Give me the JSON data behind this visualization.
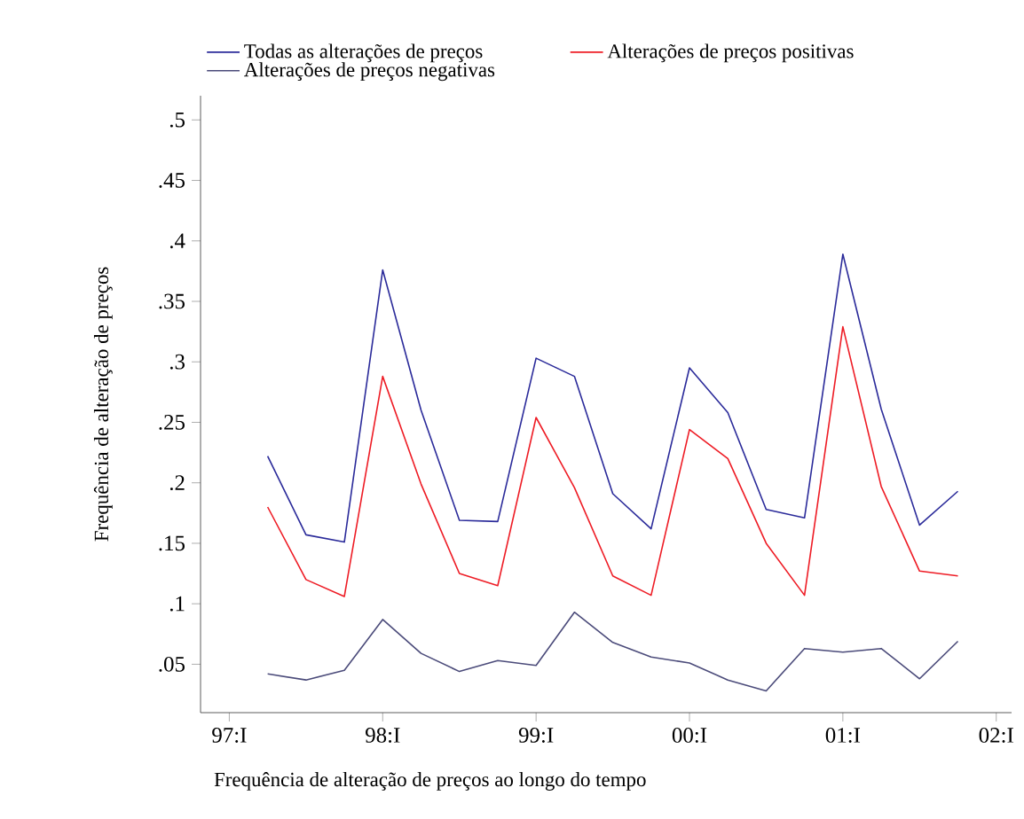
{
  "chart_data": {
    "type": "line",
    "xlabel": "Frequência de alteração de preços ao longo do tempo",
    "ylabel": "Frequência de alteração de preços",
    "categories": [
      "97:I",
      null,
      null,
      null,
      "98:I",
      null,
      null,
      null,
      "99:I",
      null,
      null,
      null,
      "00:I",
      null,
      null,
      null,
      "01:I",
      null,
      null,
      null,
      "02:I"
    ],
    "series": [
      {
        "name": "Todas as alterações de preços",
        "color": "#2b2b9a",
        "values": [
          null,
          0.222,
          0.157,
          0.151,
          0.376,
          0.26,
          0.169,
          0.168,
          0.303,
          0.288,
          0.191,
          0.162,
          0.295,
          0.258,
          0.178,
          0.171,
          0.389,
          0.261,
          0.165,
          0.193,
          null
        ]
      },
      {
        "name": "Alterações de preços positivas",
        "color": "#ee1c25",
        "values": [
          null,
          0.18,
          0.12,
          0.106,
          0.288,
          0.199,
          0.125,
          0.115,
          0.254,
          0.196,
          0.123,
          0.107,
          0.244,
          0.22,
          0.15,
          0.107,
          0.329,
          0.197,
          0.127,
          0.123,
          null
        ]
      },
      {
        "name": "Alterações de preços negativas",
        "color": "#4b4b7a",
        "values": [
          null,
          0.042,
          0.037,
          0.045,
          0.087,
          0.059,
          0.044,
          0.053,
          0.049,
          0.093,
          0.068,
          0.056,
          0.051,
          0.037,
          0.028,
          0.063,
          0.06,
          0.063,
          0.038,
          0.069,
          null
        ]
      }
    ],
    "ylim": [
      0.01,
      0.52
    ],
    "yticks": [
      {
        "value": 0.05,
        "label": ".05"
      },
      {
        "value": 0.1,
        "label": ".1"
      },
      {
        "value": 0.15,
        "label": ".15"
      },
      {
        "value": 0.2,
        "label": ".2"
      },
      {
        "value": 0.25,
        "label": ".25"
      },
      {
        "value": 0.3,
        "label": ".3"
      },
      {
        "value": 0.35,
        "label": ".35"
      },
      {
        "value": 0.4,
        "label": ".4"
      },
      {
        "value": 0.45,
        "label": ".45"
      },
      {
        "value": 0.5,
        "label": ".5"
      }
    ],
    "grid": false,
    "legend": "top",
    "marker": "none",
    "line_style": "solid"
  }
}
